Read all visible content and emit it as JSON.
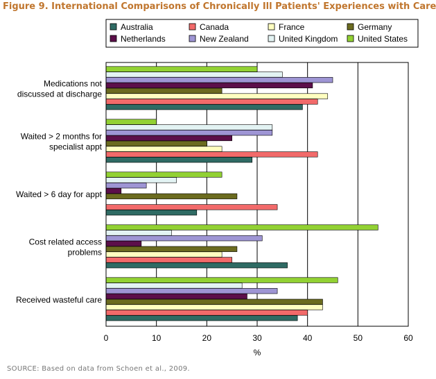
{
  "figure_title": "Figure 9. International Comparisons of Chronically Ill Patients' Experiences with Care",
  "source_note": "SOURCE: Based on data from Schoen et al., 2009.",
  "chart_data": {
    "type": "bar",
    "orientation": "horizontal",
    "categories": [
      "Medications not discussed at discharge",
      "Waited > 2 months for specialist appt",
      "Waited > 6 day for appt",
      "Cost related access problems",
      "Received wasteful care"
    ],
    "category_label_lines": [
      [
        "Medications not",
        "discussed at discharge"
      ],
      [
        "Waited > 2 months for",
        "specialist appt"
      ],
      [
        "Waited > 6 day for appt"
      ],
      [
        "Cost related access",
        "problems"
      ],
      [
        "Received wasteful care"
      ]
    ],
    "series": [
      {
        "name": "Australia",
        "color": "#2f6b64",
        "values": [
          39,
          29,
          18,
          36,
          38
        ]
      },
      {
        "name": "Canada",
        "color": "#f26a6a",
        "values": [
          42,
          42,
          34,
          25,
          40
        ]
      },
      {
        "name": "France",
        "color": "#ffffc0",
        "values": [
          44,
          23,
          null,
          23,
          43
        ]
      },
      {
        "name": "Germany",
        "color": "#6b6b1f",
        "values": [
          23,
          20,
          26,
          26,
          43
        ]
      },
      {
        "name": "Netherlands",
        "color": "#5c0f4a",
        "values": [
          41,
          25,
          3,
          7,
          28
        ]
      },
      {
        "name": "New Zealand",
        "color": "#9e95d4",
        "values": [
          45,
          33,
          8,
          31,
          34
        ]
      },
      {
        "name": "United Kingdom",
        "color": "#e3f3f3",
        "values": [
          35,
          33,
          14,
          13,
          27
        ]
      },
      {
        "name": "United States",
        "color": "#92d133",
        "values": [
          30,
          10,
          23,
          54,
          46
        ]
      }
    ],
    "xlabel": "%",
    "xlim": [
      0,
      60
    ],
    "xticks": [
      0,
      10,
      20,
      30,
      40,
      50,
      60
    ],
    "grid": "vertical",
    "legend": "top",
    "legend_columns": 4
  }
}
